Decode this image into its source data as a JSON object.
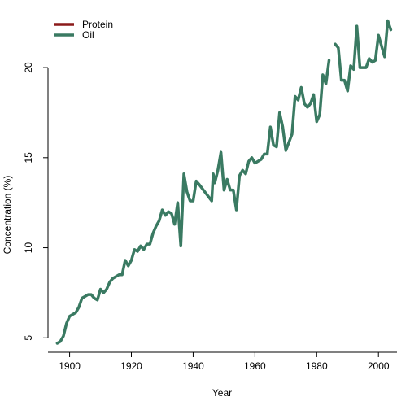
{
  "chart_data": {
    "type": "line",
    "title": "",
    "xlabel": "Year",
    "ylabel": "Concentration (%)",
    "xlim": [
      1893,
      2006
    ],
    "ylim": [
      4.2,
      23.3
    ],
    "xticks": [
      1900,
      1920,
      1940,
      1960,
      1980,
      2000
    ],
    "yticks": [
      5,
      10,
      15,
      20
    ],
    "legend": {
      "position": "top-left"
    },
    "grid": false,
    "series": [
      {
        "name": "Protein",
        "color": "#8b1a1a",
        "points": []
      },
      {
        "name": "Oil",
        "color": "#3a7a62",
        "points": [
          [
            1896,
            4.7
          ],
          [
            1897,
            4.8
          ],
          [
            1898,
            5.1
          ],
          [
            1899,
            5.8
          ],
          [
            1900,
            6.2
          ],
          [
            1901,
            6.3
          ],
          [
            1902,
            6.4
          ],
          [
            1903,
            6.7
          ],
          [
            1904,
            7.2
          ],
          [
            1905,
            7.3
          ],
          [
            1906,
            7.4
          ],
          [
            1907,
            7.4
          ],
          [
            1908,
            7.2
          ],
          [
            1909,
            7.1
          ],
          [
            1910,
            7.7
          ],
          [
            1911,
            7.5
          ],
          [
            1912,
            7.7
          ],
          [
            1913,
            8.1
          ],
          [
            1914,
            8.3
          ],
          [
            1915,
            8.4
          ],
          [
            1916,
            8.5
          ],
          [
            1917,
            8.5
          ],
          [
            1918,
            9.3
          ],
          [
            1919,
            9.0
          ],
          [
            1920,
            9.3
          ],
          [
            1921,
            9.9
          ],
          [
            1922,
            9.8
          ],
          [
            1923,
            10.1
          ],
          [
            1924,
            9.9
          ],
          [
            1925,
            10.2
          ],
          [
            1926,
            10.2
          ],
          [
            1927,
            10.8
          ],
          [
            1928,
            11.2
          ],
          [
            1929,
            11.5
          ],
          [
            1930,
            12.1
          ],
          [
            1931,
            11.8
          ],
          [
            1932,
            12.0
          ],
          [
            1933,
            11.9
          ],
          [
            1934,
            11.3
          ],
          [
            1935,
            12.5
          ],
          [
            1936,
            10.1
          ],
          [
            1937,
            14.1
          ],
          [
            1938,
            13.1
          ],
          [
            1939,
            12.6
          ],
          [
            1940,
            12.6
          ],
          [
            1941,
            13.7
          ],
          [
            1942,
            13.5
          ],
          [
            1946,
            12.6
          ],
          [
            1946.5,
            14.1
          ],
          [
            1947,
            13.6
          ],
          [
            1948,
            14.3
          ],
          [
            1949,
            15.3
          ],
          [
            1950,
            13.2
          ],
          [
            1951,
            13.8
          ],
          [
            1952,
            13.2
          ],
          [
            1953,
            13.2
          ],
          [
            1954,
            12.1
          ],
          [
            1955,
            14.0
          ],
          [
            1956,
            14.3
          ],
          [
            1957,
            14.1
          ],
          [
            1958,
            14.8
          ],
          [
            1959,
            15.0
          ],
          [
            1960,
            14.7
          ],
          [
            1962,
            14.9
          ],
          [
            1963,
            15.2
          ],
          [
            1964,
            15.2
          ],
          [
            1965,
            16.7
          ],
          [
            1966,
            15.7
          ],
          [
            1967,
            15.6
          ],
          [
            1968,
            17.5
          ],
          [
            1969,
            16.7
          ],
          [
            1970,
            15.4
          ],
          [
            1972,
            16.3
          ],
          [
            1973,
            18.4
          ],
          [
            1974,
            18.2
          ],
          [
            1975,
            18.9
          ],
          [
            1976,
            18.0
          ],
          [
            1977,
            17.8
          ],
          [
            1978,
            18.0
          ],
          [
            1979,
            18.5
          ],
          [
            1980,
            17.0
          ],
          [
            1981,
            17.4
          ],
          [
            1982,
            19.6
          ],
          [
            1983,
            19.1
          ],
          [
            1984,
            20.4
          ],
          null,
          [
            1986,
            21.3
          ],
          [
            1987,
            21.1
          ],
          [
            1988,
            19.3
          ],
          [
            1989,
            19.3
          ],
          [
            1990,
            18.7
          ],
          [
            1991,
            20.1
          ],
          [
            1992,
            19.9
          ],
          [
            1993,
            22.3
          ],
          [
            1994,
            20.0
          ],
          [
            1995,
            20.0
          ],
          [
            1996,
            20.0
          ],
          [
            1997,
            20.5
          ],
          [
            1998,
            20.3
          ],
          [
            1999,
            20.4
          ],
          [
            2000,
            21.8
          ],
          [
            2001,
            21.2
          ],
          [
            2002,
            20.6
          ],
          [
            2003,
            22.6
          ],
          [
            2004,
            22.1
          ]
        ]
      }
    ]
  }
}
